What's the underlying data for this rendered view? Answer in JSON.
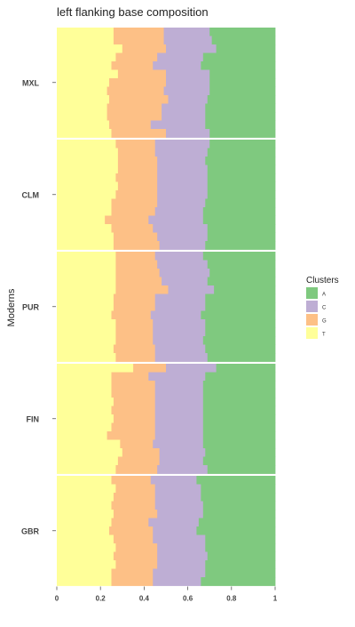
{
  "chart_data": {
    "type": "bar",
    "orientation": "horizontal",
    "stacked": true,
    "title": "left flanking base composition",
    "ylabel": "Moderns",
    "xlabel": "",
    "xlim": [
      0,
      1
    ],
    "xticks": [
      "0",
      "0.2",
      "0.4",
      "0.6",
      "0.8",
      "1"
    ],
    "grid": false,
    "legend": {
      "title": "Clusters",
      "position": "right",
      "entries": [
        "A",
        "C",
        "G",
        "T"
      ]
    },
    "stack_order": [
      "T",
      "G",
      "C",
      "A"
    ],
    "colors": {
      "A": "#7fc97f",
      "C": "#beaed4",
      "G": "#fdc086",
      "T": "#ffff99"
    },
    "panels": [
      {
        "label": "MXL",
        "bars": [
          {
            "T": 0.26,
            "G": 0.23,
            "C": 0.21,
            "A": 0.3
          },
          {
            "T": 0.26,
            "G": 0.23,
            "C": 0.22,
            "A": 0.29
          },
          {
            "T": 0.3,
            "G": 0.2,
            "C": 0.23,
            "A": 0.27
          },
          {
            "T": 0.27,
            "G": 0.19,
            "C": 0.21,
            "A": 0.33
          },
          {
            "T": 0.25,
            "G": 0.19,
            "C": 0.22,
            "A": 0.34
          },
          {
            "T": 0.28,
            "G": 0.22,
            "C": 0.2,
            "A": 0.3
          },
          {
            "T": 0.24,
            "G": 0.26,
            "C": 0.2,
            "A": 0.3
          },
          {
            "T": 0.23,
            "G": 0.26,
            "C": 0.21,
            "A": 0.3
          },
          {
            "T": 0.24,
            "G": 0.27,
            "C": 0.18,
            "A": 0.31
          },
          {
            "T": 0.23,
            "G": 0.25,
            "C": 0.2,
            "A": 0.32
          },
          {
            "T": 0.23,
            "G": 0.25,
            "C": 0.2,
            "A": 0.32
          },
          {
            "T": 0.24,
            "G": 0.19,
            "C": 0.25,
            "A": 0.32
          },
          {
            "T": 0.25,
            "G": 0.25,
            "C": 0.2,
            "A": 0.3
          }
        ]
      },
      {
        "label": "CLM",
        "bars": [
          {
            "T": 0.27,
            "G": 0.18,
            "C": 0.25,
            "A": 0.3
          },
          {
            "T": 0.28,
            "G": 0.17,
            "C": 0.24,
            "A": 0.31
          },
          {
            "T": 0.28,
            "G": 0.18,
            "C": 0.22,
            "A": 0.32
          },
          {
            "T": 0.28,
            "G": 0.18,
            "C": 0.23,
            "A": 0.31
          },
          {
            "T": 0.27,
            "G": 0.19,
            "C": 0.23,
            "A": 0.31
          },
          {
            "T": 0.28,
            "G": 0.18,
            "C": 0.23,
            "A": 0.31
          },
          {
            "T": 0.27,
            "G": 0.19,
            "C": 0.23,
            "A": 0.31
          },
          {
            "T": 0.25,
            "G": 0.21,
            "C": 0.22,
            "A": 0.32
          },
          {
            "T": 0.25,
            "G": 0.2,
            "C": 0.22,
            "A": 0.33
          },
          {
            "T": 0.22,
            "G": 0.2,
            "C": 0.25,
            "A": 0.33
          },
          {
            "T": 0.25,
            "G": 0.19,
            "C": 0.25,
            "A": 0.31
          },
          {
            "T": 0.26,
            "G": 0.2,
            "C": 0.23,
            "A": 0.31
          },
          {
            "T": 0.26,
            "G": 0.21,
            "C": 0.21,
            "A": 0.32
          }
        ]
      },
      {
        "label": "PUR",
        "bars": [
          {
            "T": 0.27,
            "G": 0.18,
            "C": 0.22,
            "A": 0.33
          },
          {
            "T": 0.27,
            "G": 0.19,
            "C": 0.23,
            "A": 0.31
          },
          {
            "T": 0.27,
            "G": 0.2,
            "C": 0.23,
            "A": 0.3
          },
          {
            "T": 0.27,
            "G": 0.21,
            "C": 0.21,
            "A": 0.31
          },
          {
            "T": 0.27,
            "G": 0.24,
            "C": 0.21,
            "A": 0.28
          },
          {
            "T": 0.26,
            "G": 0.19,
            "C": 0.23,
            "A": 0.32
          },
          {
            "T": 0.26,
            "G": 0.19,
            "C": 0.23,
            "A": 0.32
          },
          {
            "T": 0.25,
            "G": 0.18,
            "C": 0.23,
            "A": 0.34
          },
          {
            "T": 0.27,
            "G": 0.17,
            "C": 0.24,
            "A": 0.32
          },
          {
            "T": 0.27,
            "G": 0.17,
            "C": 0.24,
            "A": 0.32
          },
          {
            "T": 0.27,
            "G": 0.17,
            "C": 0.23,
            "A": 0.33
          },
          {
            "T": 0.26,
            "G": 0.19,
            "C": 0.23,
            "A": 0.32
          },
          {
            "T": 0.27,
            "G": 0.18,
            "C": 0.24,
            "A": 0.31
          }
        ]
      },
      {
        "label": "FIN",
        "bars": [
          {
            "T": 0.35,
            "G": 0.15,
            "C": 0.23,
            "A": 0.27
          },
          {
            "T": 0.25,
            "G": 0.17,
            "C": 0.26,
            "A": 0.32
          },
          {
            "T": 0.25,
            "G": 0.2,
            "C": 0.22,
            "A": 0.33
          },
          {
            "T": 0.25,
            "G": 0.2,
            "C": 0.22,
            "A": 0.33
          },
          {
            "T": 0.26,
            "G": 0.19,
            "C": 0.22,
            "A": 0.33
          },
          {
            "T": 0.25,
            "G": 0.2,
            "C": 0.22,
            "A": 0.33
          },
          {
            "T": 0.26,
            "G": 0.19,
            "C": 0.22,
            "A": 0.33
          },
          {
            "T": 0.25,
            "G": 0.2,
            "C": 0.22,
            "A": 0.33
          },
          {
            "T": 0.23,
            "G": 0.22,
            "C": 0.22,
            "A": 0.33
          },
          {
            "T": 0.29,
            "G": 0.15,
            "C": 0.23,
            "A": 0.33
          },
          {
            "T": 0.3,
            "G": 0.17,
            "C": 0.21,
            "A": 0.32
          },
          {
            "T": 0.28,
            "G": 0.19,
            "C": 0.2,
            "A": 0.33
          },
          {
            "T": 0.27,
            "G": 0.19,
            "C": 0.23,
            "A": 0.31
          }
        ]
      },
      {
        "label": "GBR",
        "bars": [
          {
            "T": 0.25,
            "G": 0.18,
            "C": 0.21,
            "A": 0.36
          },
          {
            "T": 0.27,
            "G": 0.18,
            "C": 0.21,
            "A": 0.34
          },
          {
            "T": 0.26,
            "G": 0.19,
            "C": 0.21,
            "A": 0.34
          },
          {
            "T": 0.25,
            "G": 0.2,
            "C": 0.22,
            "A": 0.33
          },
          {
            "T": 0.26,
            "G": 0.2,
            "C": 0.21,
            "A": 0.33
          },
          {
            "T": 0.25,
            "G": 0.17,
            "C": 0.23,
            "A": 0.35
          },
          {
            "T": 0.24,
            "G": 0.2,
            "C": 0.2,
            "A": 0.36
          },
          {
            "T": 0.26,
            "G": 0.18,
            "C": 0.24,
            "A": 0.32
          },
          {
            "T": 0.27,
            "G": 0.19,
            "C": 0.22,
            "A": 0.32
          },
          {
            "T": 0.26,
            "G": 0.2,
            "C": 0.23,
            "A": 0.31
          },
          {
            "T": 0.27,
            "G": 0.19,
            "C": 0.22,
            "A": 0.32
          },
          {
            "T": 0.25,
            "G": 0.19,
            "C": 0.24,
            "A": 0.32
          },
          {
            "T": 0.25,
            "G": 0.19,
            "C": 0.22,
            "A": 0.34
          }
        ]
      }
    ]
  }
}
